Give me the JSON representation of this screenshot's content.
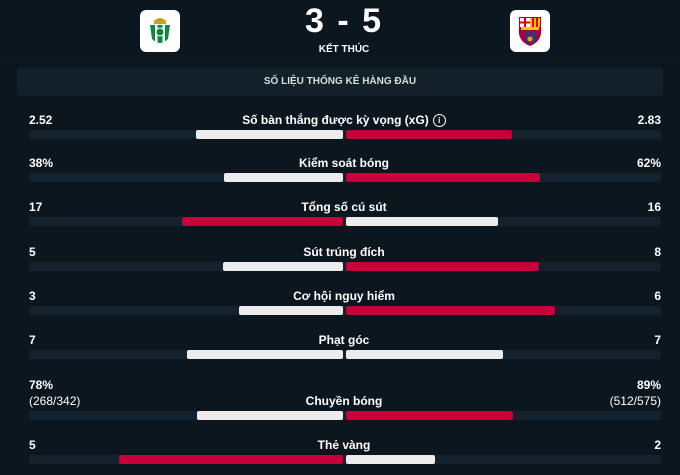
{
  "match": {
    "home_logo": "real-betis-crest",
    "away_logo": "fc-barcelona-crest",
    "score": "3 - 5",
    "status": "KẾT THÚC"
  },
  "section_title": "SỐ LIỆU THỐNG KÊ HÀNG ĐẦU",
  "colors": {
    "winner": "#c8003a",
    "other": "#ececec",
    "track": "#13222c",
    "background": "#0c161e"
  },
  "stats": [
    {
      "label": "Số bàn thắng được kỳ vọng (xG)",
      "home": "2.52",
      "away": "2.83",
      "home_val": 2.52,
      "away_val": 2.83,
      "info": true
    },
    {
      "label": "Kiểm soát bóng",
      "home": "38%",
      "away": "62%",
      "home_val": 38,
      "away_val": 62
    },
    {
      "label": "Tổng số cú sút",
      "home": "17",
      "away": "16",
      "home_val": 17,
      "away_val": 16
    },
    {
      "label": "Sút trúng đích",
      "home": "5",
      "away": "8",
      "home_val": 5,
      "away_val": 8
    },
    {
      "label": "Cơ hội nguy hiểm",
      "home": "3",
      "away": "6",
      "home_val": 3,
      "away_val": 6
    },
    {
      "label": "Phạt góc",
      "home": "7",
      "away": "7",
      "home_val": 7,
      "away_val": 7
    },
    {
      "label": "Chuyền bóng",
      "home": "78%",
      "away": "89%",
      "home_sub": "(268/342)",
      "away_sub": "(512/575)",
      "home_val": 78,
      "away_val": 89
    },
    {
      "label": "Thẻ vàng",
      "home": "5",
      "away": "2",
      "home_val": 5,
      "away_val": 2
    }
  ]
}
